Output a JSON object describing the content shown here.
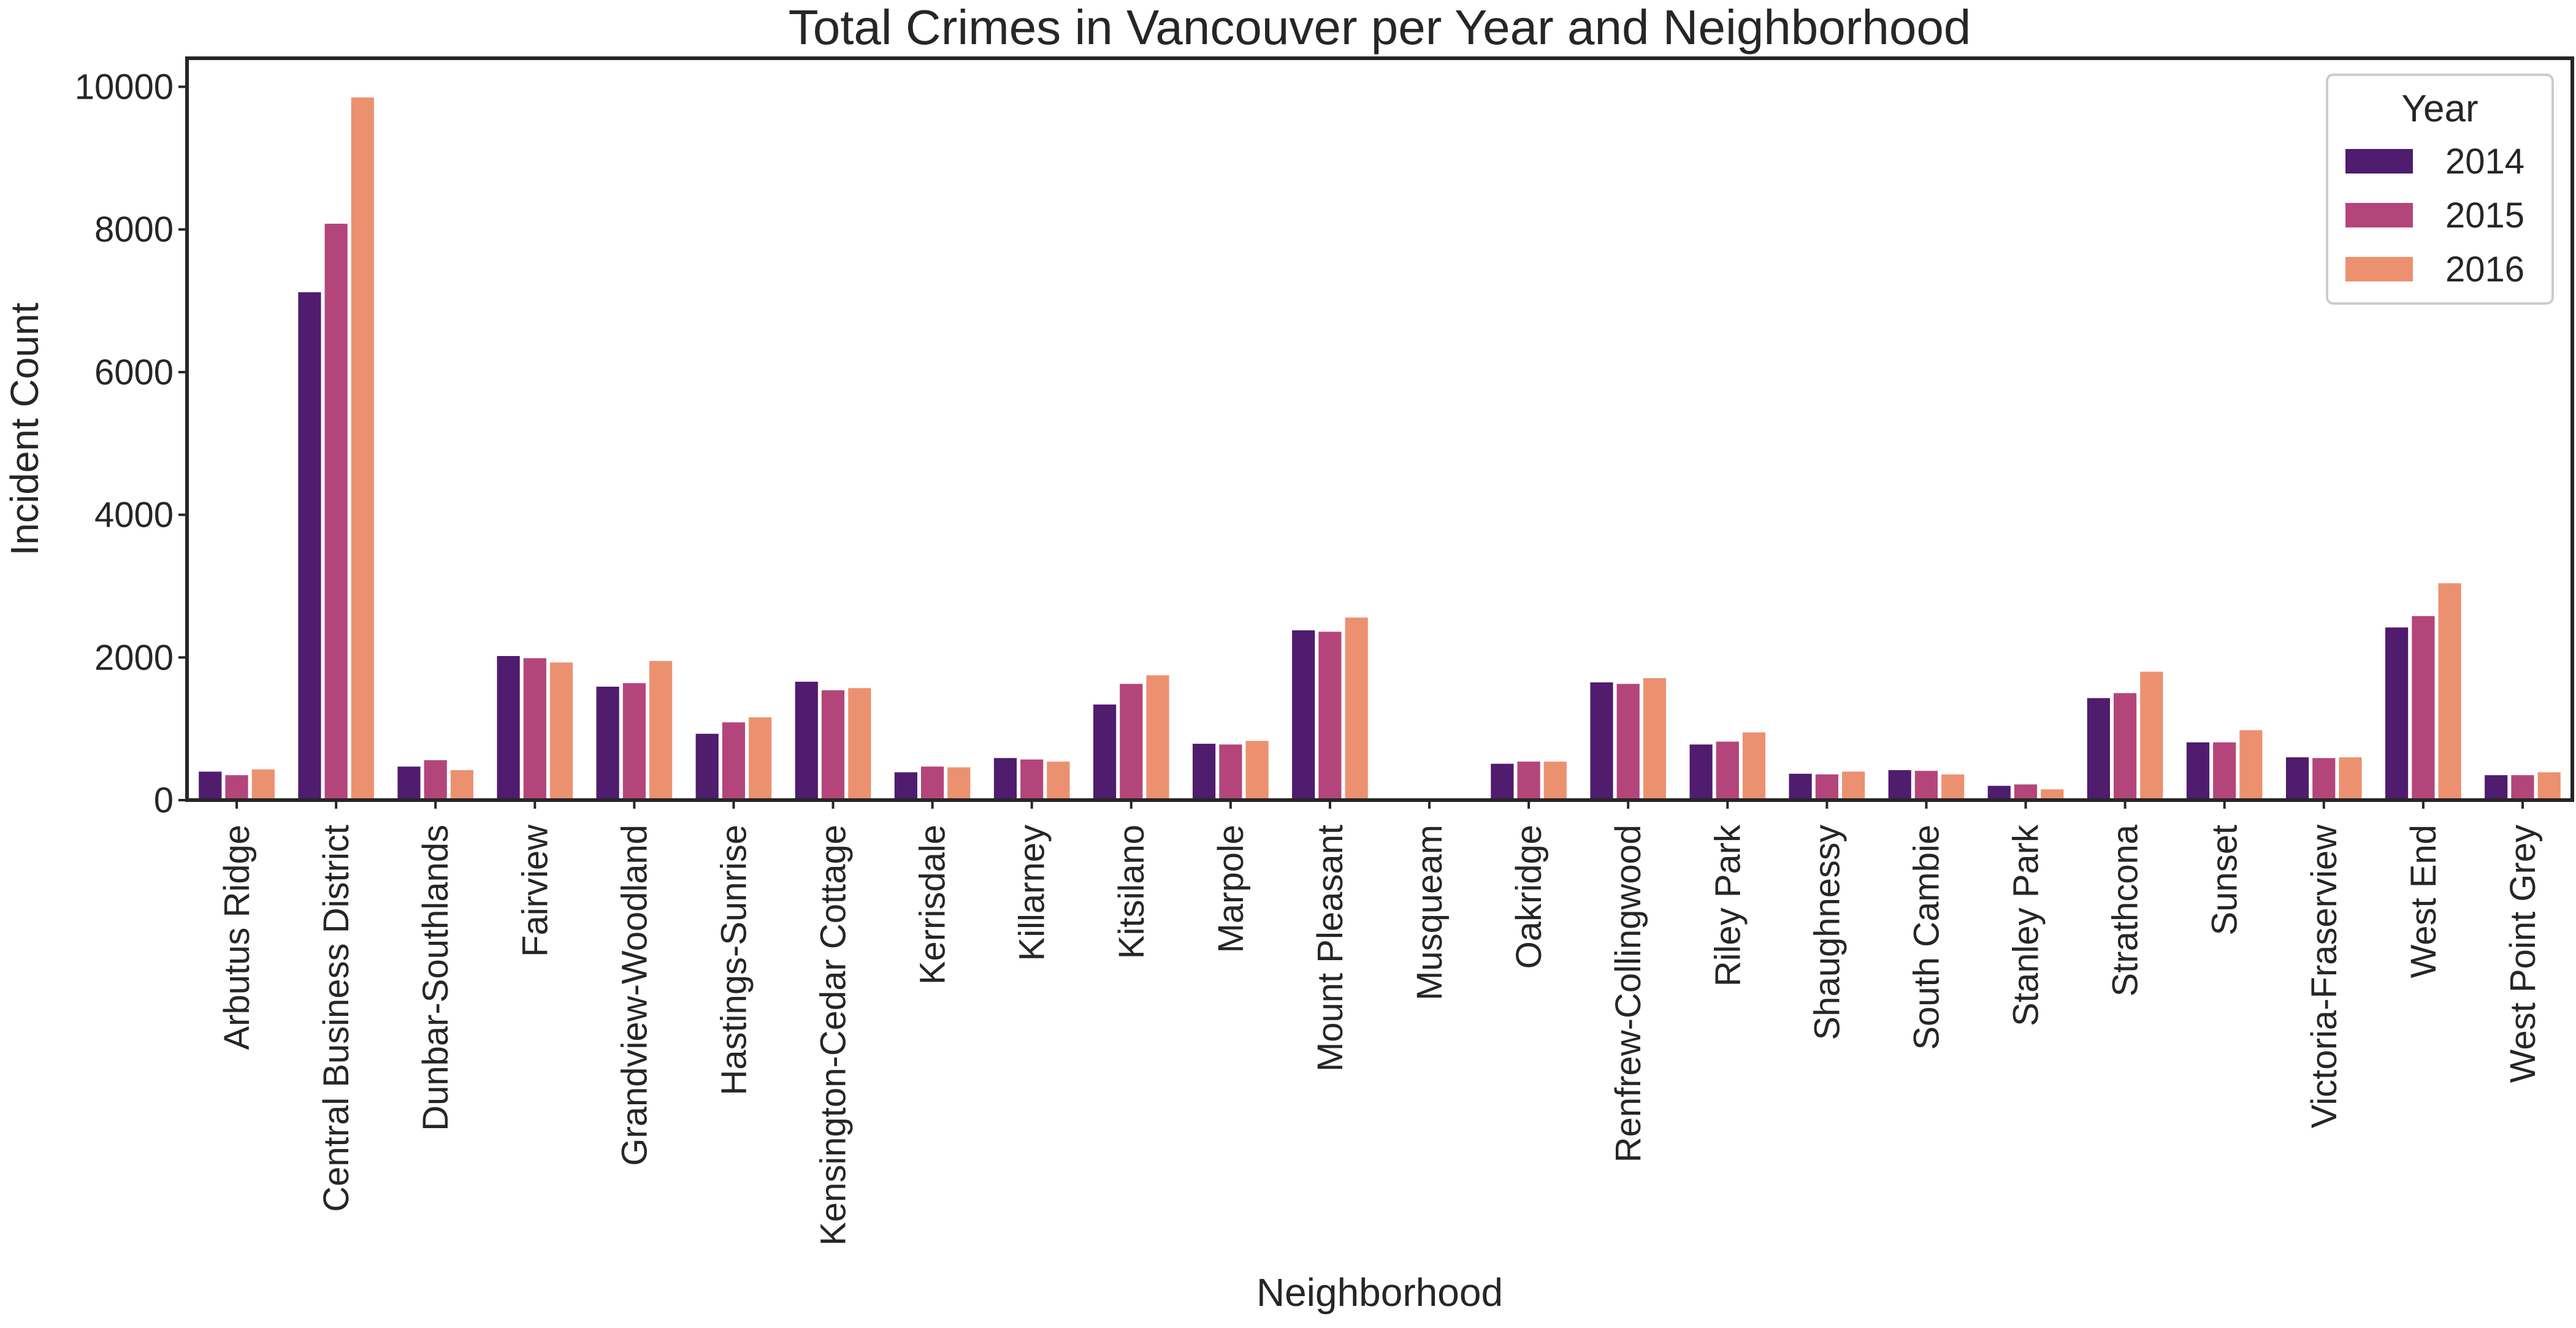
{
  "chart_data": {
    "type": "bar",
    "title": "Total Crimes in Vancouver per Year and Neighborhood",
    "xlabel": "Neighborhood",
    "ylabel": "Incident Count",
    "ylim": [
      0,
      10400
    ],
    "yticks": [
      0,
      2000,
      4000,
      6000,
      8000,
      10000
    ],
    "grid": false,
    "legend": {
      "title": "Year",
      "placement": "top-right"
    },
    "categories": [
      "Arbutus Ridge",
      "Central Business District",
      "Dunbar-Southlands",
      "Fairview",
      "Grandview-Woodland",
      "Hastings-Sunrise",
      "Kensington-Cedar Cottage",
      "Kerrisdale",
      "Killarney",
      "Kitsilano",
      "Marpole",
      "Mount Pleasant",
      "Musqueam",
      "Oakridge",
      "Renfrew-Collingwood",
      "Riley Park",
      "Shaughnessy",
      "South Cambie",
      "Stanley Park",
      "Strathcona",
      "Sunset",
      "Victoria-Fraserview",
      "West End",
      "West Point Grey"
    ],
    "series": [
      {
        "name": "2014",
        "color": "#4f1c6e",
        "values": [
          400,
          7120,
          470,
          2020,
          1590,
          930,
          1660,
          390,
          590,
          1340,
          790,
          2380,
          10,
          510,
          1650,
          780,
          370,
          420,
          200,
          1430,
          810,
          600,
          2420,
          350
        ]
      },
      {
        "name": "2015",
        "color": "#b4457b",
        "values": [
          350,
          8080,
          560,
          1990,
          1640,
          1090,
          1540,
          470,
          570,
          1630,
          780,
          2360,
          10,
          540,
          1630,
          820,
          360,
          410,
          220,
          1500,
          810,
          590,
          2580,
          350
        ]
      },
      {
        "name": "2016",
        "color": "#ec9170",
        "values": [
          430,
          9850,
          420,
          1930,
          1950,
          1160,
          1570,
          460,
          540,
          1750,
          830,
          2560,
          10,
          540,
          1710,
          950,
          400,
          360,
          150,
          1800,
          980,
          600,
          3040,
          390
        ]
      }
    ]
  }
}
